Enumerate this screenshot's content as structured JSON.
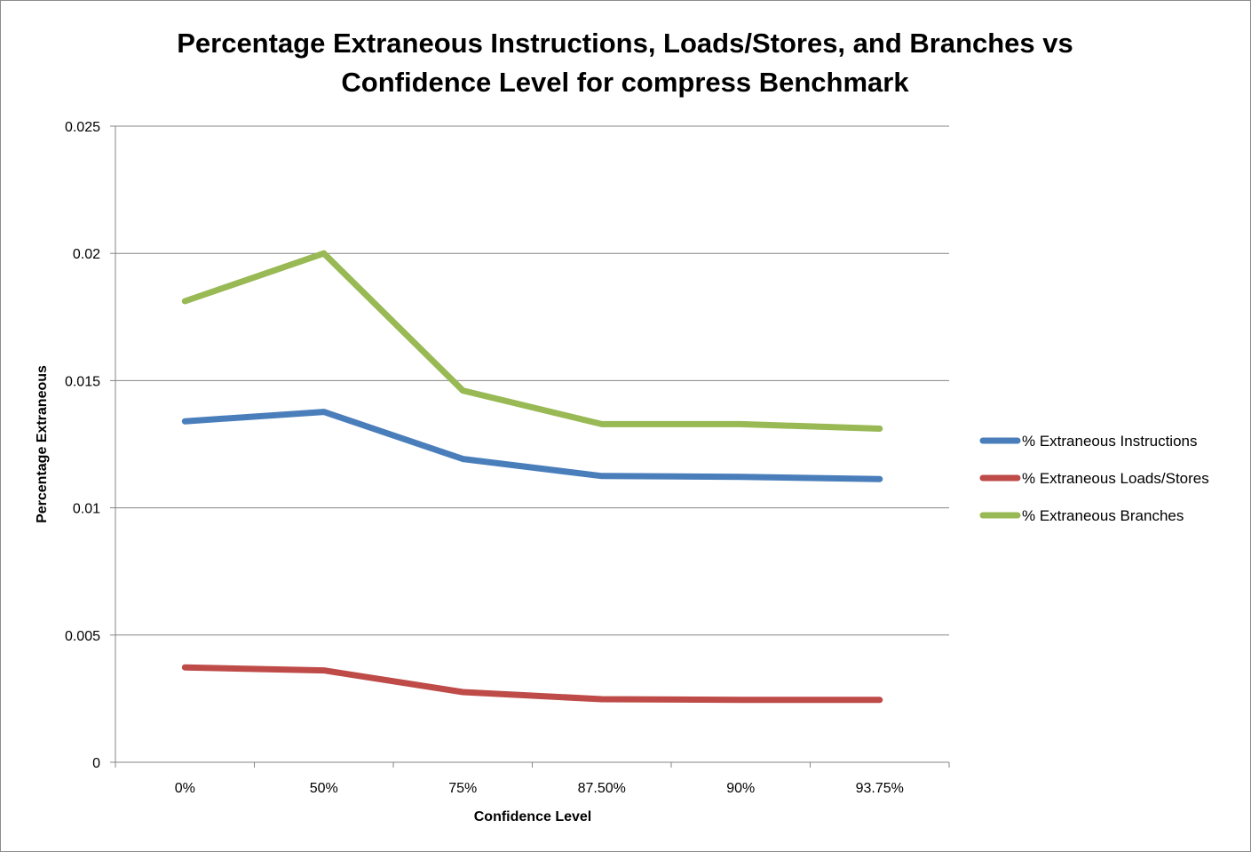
{
  "chart_data": {
    "type": "line",
    "title_lines": [
      "Percentage Extraneous Instructions, Loads/Stores, and Branches vs",
      "Confidence Level for compress Benchmark"
    ],
    "xlabel": "Confidence Level",
    "ylabel": "Percentage Extraneous",
    "categories": [
      "0%",
      "50%",
      "75%",
      "87.50%",
      "90%",
      "93.75%"
    ],
    "ylim": [
      0,
      0.025
    ],
    "yticks": [
      "0",
      "0.005",
      "0.01",
      "0.015",
      "0.02",
      "0.025"
    ],
    "grid": true,
    "legend_position": "right",
    "series": [
      {
        "name": "% Extraneous Instructions",
        "color": "#4a7ebb",
        "values": [
          0.0134,
          0.01377,
          0.01192,
          0.01125,
          0.01122,
          0.01113
        ]
      },
      {
        "name": "% Extraneous Loads/Stores",
        "color": "#be4b48",
        "values": [
          0.00373,
          0.00361,
          0.00276,
          0.00248,
          0.00245,
          0.00245
        ]
      },
      {
        "name": "% Extraneous Branches",
        "color": "#98b954",
        "values": [
          0.01812,
          0.02,
          0.01461,
          0.01329,
          0.01329,
          0.01311
        ]
      }
    ]
  }
}
